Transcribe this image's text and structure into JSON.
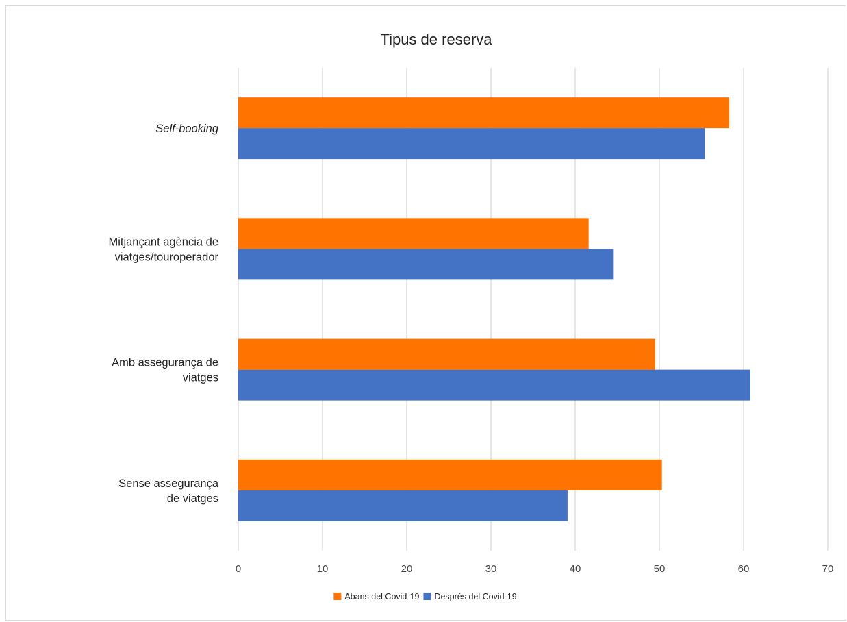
{
  "chart_data": {
    "type": "bar",
    "orientation": "horizontal",
    "title": "Tipus de reserva",
    "categories": [
      [
        "Self-booking"
      ],
      [
        "Mitjançant agència de",
        "viatges/touroperador"
      ],
      [
        "Amb assegurança de",
        "viatges"
      ],
      [
        "Sense assegurança",
        "de viatges"
      ]
    ],
    "italic_categories": [
      0
    ],
    "series": [
      {
        "name": "Abans del Covid-19",
        "color": "#ff7300",
        "values": [
          58.3,
          41.6,
          49.5,
          50.3
        ]
      },
      {
        "name": "Després del Covid-19",
        "color": "#4472c4",
        "values": [
          55.4,
          44.5,
          60.8,
          39.1
        ]
      }
    ],
    "xlim": [
      0,
      70
    ],
    "xticks": [
      0,
      10,
      20,
      30,
      40,
      50,
      60,
      70
    ],
    "grid": true,
    "legend_position": "bottom"
  }
}
